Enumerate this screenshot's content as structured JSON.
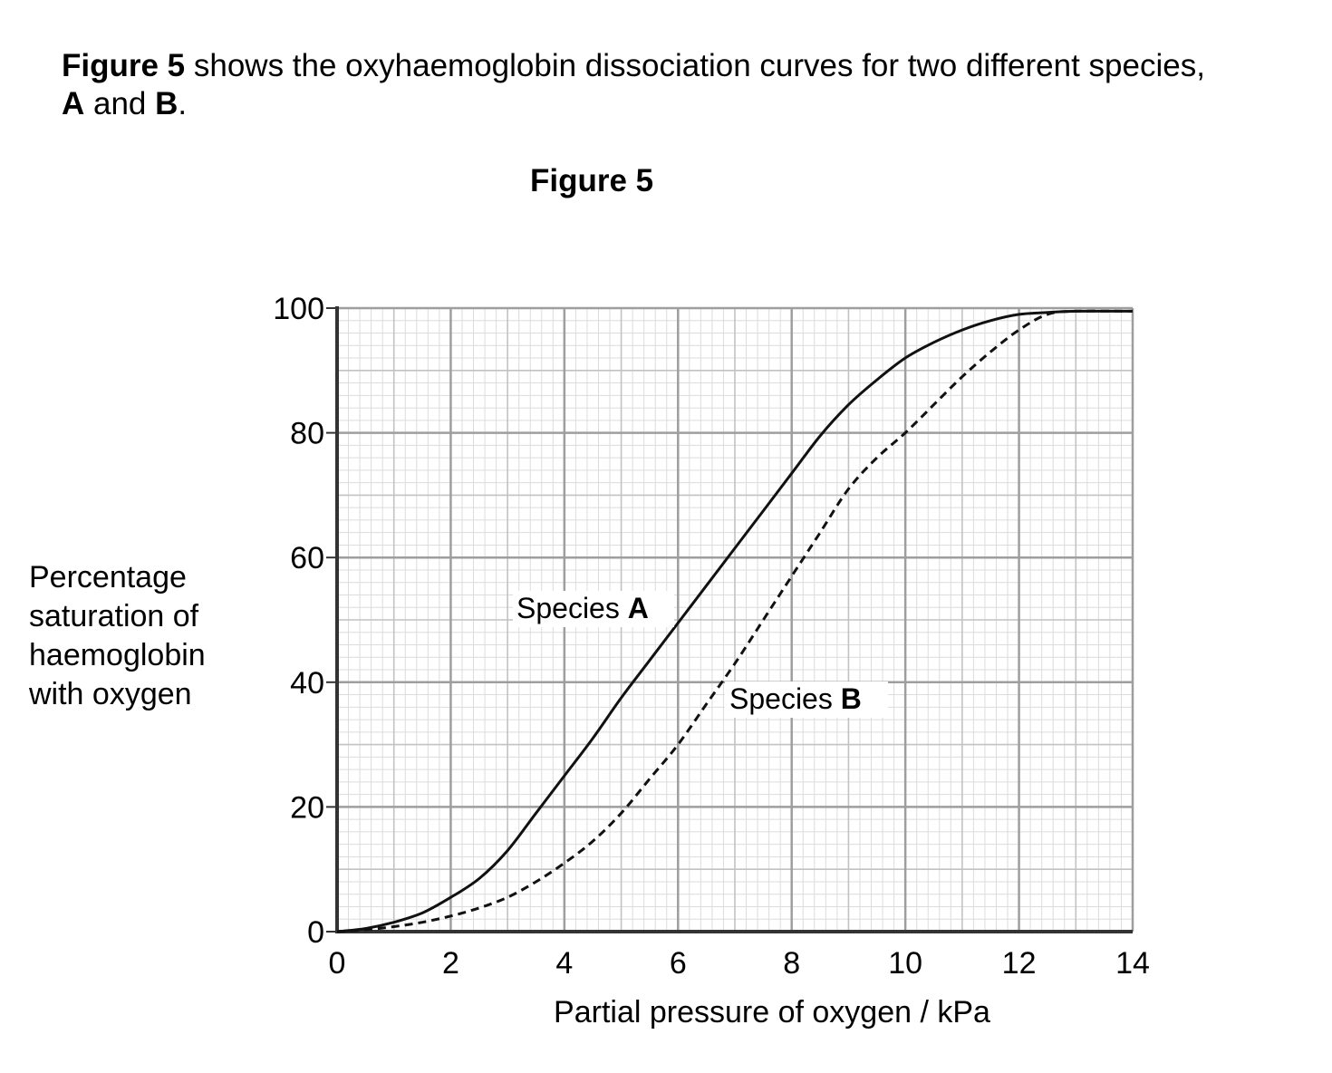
{
  "intro": {
    "lead_bold": "Figure 5",
    "text": " shows the oxyhaemoglobin dissociation curves for two different species,",
    "a": "A",
    "and": " and ",
    "b": "B",
    "end": "."
  },
  "figure_title": "Figure 5",
  "y_label_lines": [
    "Percentage",
    "saturation of",
    "haemoglobin",
    "with oxygen"
  ],
  "chart_data": {
    "type": "line",
    "title": "Figure 5",
    "xlabel": "Partial pressure of oxygen / kPa",
    "ylabel": "Percentage saturation of haemoglobin with oxygen",
    "xlim": [
      0,
      14
    ],
    "ylim": [
      0,
      100
    ],
    "xticks": [
      0,
      2,
      4,
      6,
      8,
      10,
      12,
      14
    ],
    "yticks": [
      0,
      20,
      40,
      60,
      80,
      100
    ],
    "grid": true,
    "series": [
      {
        "name": "Species A",
        "name_prefix": "Species ",
        "name_bold": "A",
        "style": "solid",
        "x": [
          0,
          0.5,
          1,
          1.5,
          2,
          2.5,
          3,
          3.5,
          4,
          4.5,
          5,
          5.5,
          6,
          6.5,
          7,
          7.5,
          8,
          8.5,
          9,
          9.5,
          10,
          10.5,
          11,
          11.5,
          12,
          12.5,
          13,
          14
        ],
        "y": [
          0,
          0.5,
          1.5,
          3,
          5.5,
          8.5,
          13,
          19,
          25,
          31,
          37.5,
          43.5,
          49.5,
          55.5,
          61.5,
          67.5,
          73.5,
          79.5,
          84.5,
          88.5,
          92,
          94.5,
          96.5,
          98,
          99,
          99.3,
          99.5,
          99.5
        ]
      },
      {
        "name": "Species B",
        "name_prefix": "Species ",
        "name_bold": "B",
        "style": "dashed",
        "x": [
          0,
          0.5,
          1,
          1.5,
          2,
          2.5,
          3,
          3.5,
          4,
          4.5,
          5,
          5.5,
          6,
          6.5,
          7,
          7.5,
          8,
          8.5,
          9,
          9.5,
          10,
          10.5,
          11,
          11.5,
          12,
          12.5,
          13,
          14
        ],
        "y": [
          0,
          0.3,
          0.8,
          1.5,
          2.5,
          3.8,
          5.5,
          8,
          11,
          14.5,
          19,
          24.5,
          30,
          36.5,
          43,
          50,
          57,
          64,
          71,
          76,
          80,
          84.5,
          89,
          93,
          96.5,
          99,
          99.5,
          99.5
        ]
      }
    ]
  }
}
